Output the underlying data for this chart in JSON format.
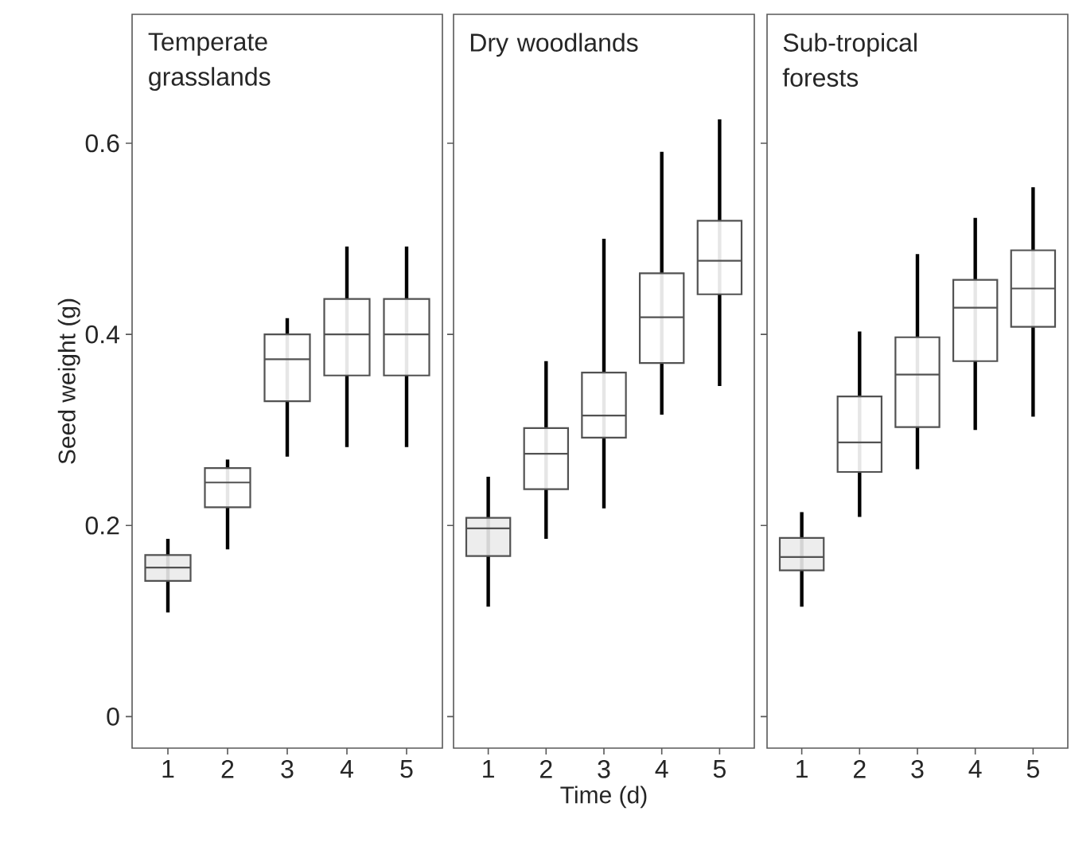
{
  "chart_data": [
    {
      "type": "box",
      "title": "Temperate grasslands",
      "ylabel": "Seed weight (g)",
      "categories": [
        "1",
        "2",
        "3",
        "4",
        "5"
      ],
      "ylim": [
        -0.033,
        0.735
      ],
      "yticks": [
        0,
        0.2,
        0.4,
        0.6
      ],
      "colors": [
        "#ebebeb",
        "#ffffff",
        "#ffffff",
        "#ffffff",
        "#ffffff"
      ],
      "boxes": [
        {
          "low": 0.109,
          "q1": 0.142,
          "median": 0.156,
          "q3": 0.169,
          "high": 0.186
        },
        {
          "low": 0.175,
          "q1": 0.219,
          "median": 0.245,
          "q3": 0.26,
          "high": 0.269
        },
        {
          "low": 0.272,
          "q1": 0.33,
          "median": 0.374,
          "q3": 0.4,
          "high": 0.417
        },
        {
          "low": 0.282,
          "q1": 0.357,
          "median": 0.4,
          "q3": 0.437,
          "high": 0.492
        },
        {
          "low": 0.282,
          "q1": 0.357,
          "median": 0.4,
          "q3": 0.437,
          "high": 0.492
        }
      ]
    },
    {
      "type": "box",
      "title": "Dry woodlands",
      "xlabel": "Time (d)",
      "categories": [
        "1",
        "2",
        "3",
        "4",
        "5"
      ],
      "ylim": [
        -0.033,
        0.735
      ],
      "yticks": [
        0,
        0.2,
        0.4,
        0.6
      ],
      "tick_labels": "x",
      "colors": [
        "#ebebeb",
        "#ffffff",
        "#ffffff",
        "#ffffff",
        "#ffffff"
      ],
      "boxes": [
        {
          "low": 0.115,
          "q1": 0.168,
          "median": 0.197,
          "q3": 0.208,
          "high": 0.251
        },
        {
          "low": 0.186,
          "q1": 0.238,
          "median": 0.275,
          "q3": 0.302,
          "high": 0.372
        },
        {
          "low": 0.218,
          "q1": 0.292,
          "median": 0.315,
          "q3": 0.36,
          "high": 0.5
        },
        {
          "low": 0.316,
          "q1": 0.37,
          "median": 0.418,
          "q3": 0.464,
          "high": 0.591
        },
        {
          "low": 0.346,
          "q1": 0.442,
          "median": 0.477,
          "q3": 0.519,
          "high": 0.625
        }
      ]
    },
    {
      "type": "box",
      "title": "Sub-tropical forests",
      "categories": [
        "1",
        "2",
        "3",
        "4",
        "5"
      ],
      "ylim": [
        -0.033,
        0.735
      ],
      "yticks": [
        0,
        0.2,
        0.4,
        0.6
      ],
      "tick_labels": "x",
      "colors": [
        "#ebebeb",
        "#ffffff",
        "#ffffff",
        "#ffffff",
        "#ffffff"
      ],
      "boxes": [
        {
          "low": 0.115,
          "q1": 0.153,
          "median": 0.167,
          "q3": 0.187,
          "high": 0.214
        },
        {
          "low": 0.209,
          "q1": 0.256,
          "median": 0.287,
          "q3": 0.335,
          "high": 0.403
        },
        {
          "low": 0.259,
          "q1": 0.303,
          "median": 0.358,
          "q3": 0.397,
          "high": 0.484
        },
        {
          "low": 0.3,
          "q1": 0.372,
          "median": 0.428,
          "q3": 0.457,
          "high": 0.522
        },
        {
          "low": 0.314,
          "q1": 0.408,
          "median": 0.448,
          "q3": 0.488,
          "high": 0.554
        }
      ]
    }
  ]
}
